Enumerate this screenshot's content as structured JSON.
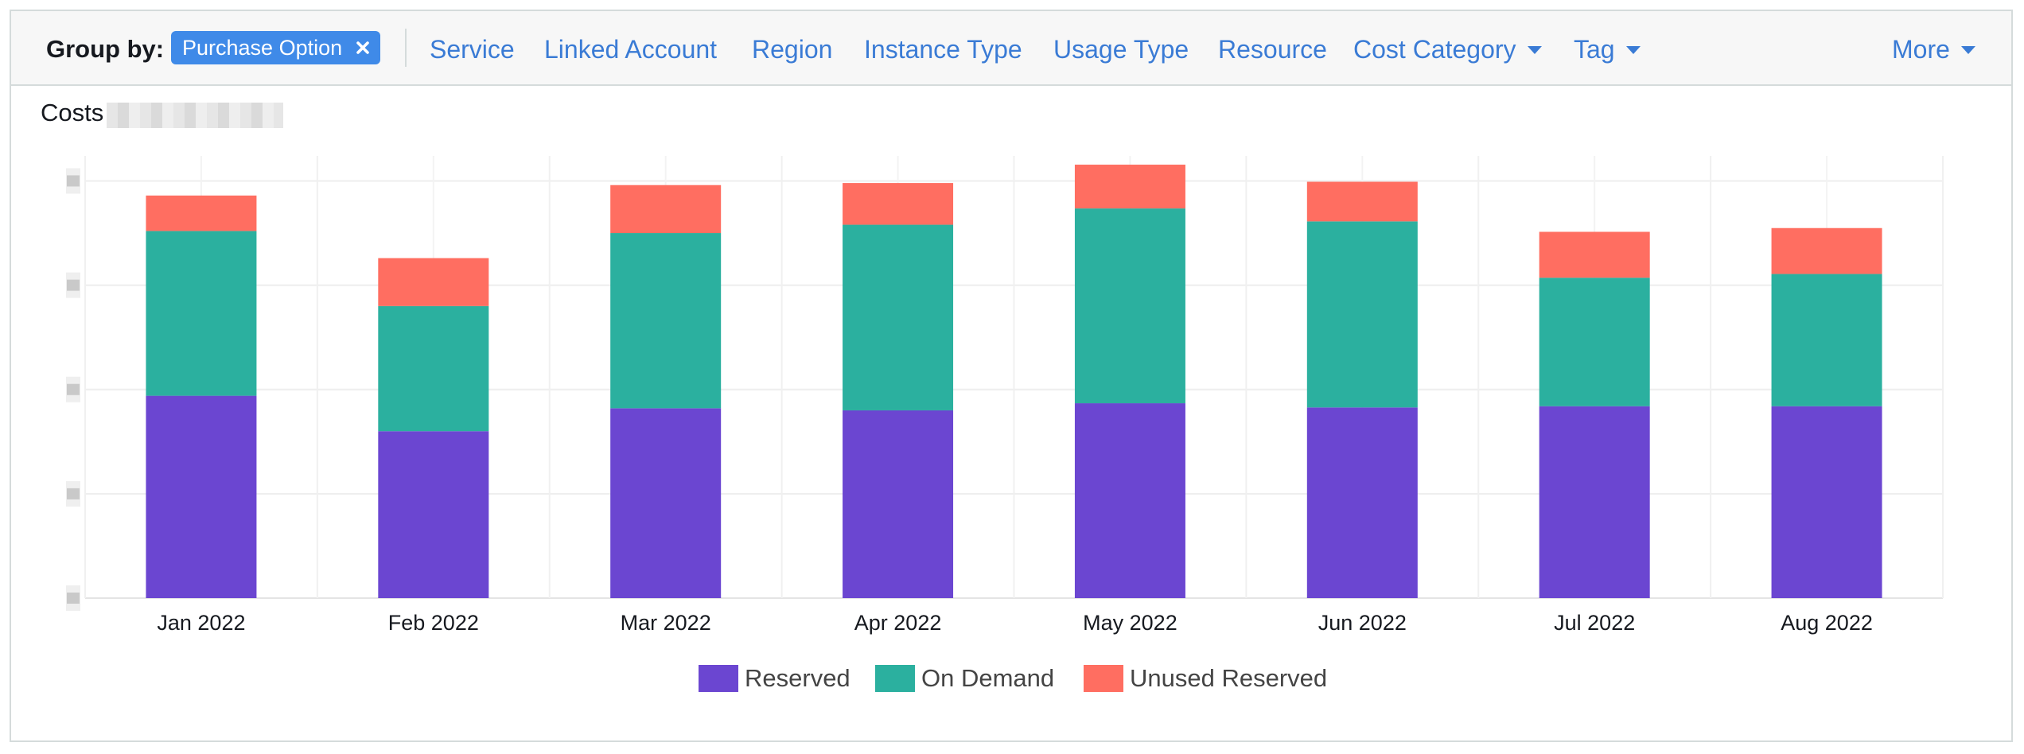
{
  "group_by": {
    "label": "Group by:",
    "selected_chip": "Purchase Option",
    "options": [
      {
        "label": "Service",
        "dropdown": false
      },
      {
        "label": "Linked Account",
        "dropdown": false
      },
      {
        "label": "Region",
        "dropdown": false
      },
      {
        "label": "Instance Type",
        "dropdown": false
      },
      {
        "label": "Usage Type",
        "dropdown": false
      },
      {
        "label": "Resource",
        "dropdown": false
      },
      {
        "label": "Cost Category",
        "dropdown": true
      },
      {
        "label": "Tag",
        "dropdown": true
      }
    ],
    "more_label": "More"
  },
  "chart_title": "Costs",
  "chart_data": {
    "type": "bar",
    "stacked": true,
    "title": "Costs",
    "xlabel": "",
    "ylabel": "",
    "y_tick_labels_visible": false,
    "grid": true,
    "legend_position": "bottom-center",
    "ylim": [
      0,
      1.06
    ],
    "categories": [
      "Jan 2022",
      "Feb 2022",
      "Mar 2022",
      "Apr 2022",
      "May 2022",
      "Jun 2022",
      "Jul 2022",
      "Aug 2022"
    ],
    "series": [
      {
        "name": "Reserved",
        "color": "#6b46d1",
        "values": [
          0.485,
          0.4,
          0.455,
          0.45,
          0.467,
          0.457,
          0.46,
          0.46
        ]
      },
      {
        "name": "On Demand",
        "color": "#2bb09f",
        "values": [
          0.395,
          0.3,
          0.42,
          0.445,
          0.467,
          0.446,
          0.308,
          0.317
        ]
      },
      {
        "name": "Unused Reserved",
        "color": "#ff6e61",
        "values": [
          0.085,
          0.115,
          0.115,
          0.1,
          0.105,
          0.095,
          0.11,
          0.11
        ]
      }
    ]
  }
}
